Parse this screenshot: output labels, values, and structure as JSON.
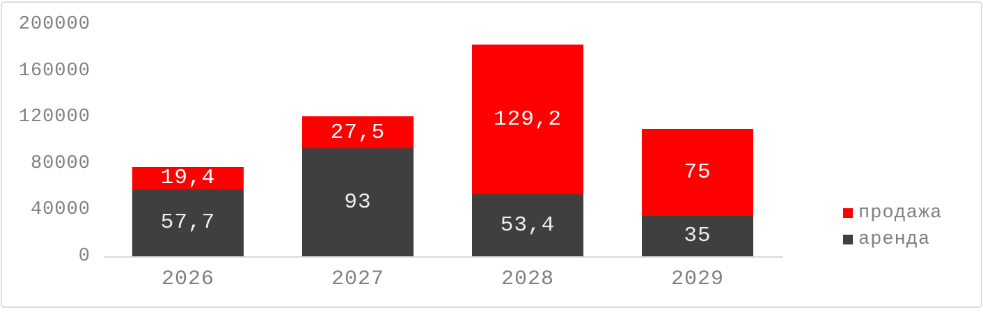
{
  "chart_data": {
    "type": "bar",
    "stacked": true,
    "title": "",
    "xlabel": "",
    "ylabel": "",
    "categories": [
      "2026",
      "2027",
      "2028",
      "2029"
    ],
    "series": [
      {
        "name": "продажа",
        "color": "#FF0000",
        "label_color": "#FFFFFF",
        "values": [
          19400,
          27500,
          129200,
          75000
        ],
        "data_labels": [
          "19,4",
          "27,5",
          "129,2",
          "75"
        ]
      },
      {
        "name": "аренда",
        "color": "#3F3F3F",
        "label_color": "#EDEDED",
        "values": [
          57700,
          93000,
          53400,
          35000
        ],
        "data_labels": [
          "57,7",
          "93",
          "53,4",
          "35"
        ]
      }
    ],
    "stack_bottom_to_top": [
      "аренда",
      "продажа"
    ],
    "y_ticks": [
      0,
      40000,
      80000,
      120000,
      160000,
      200000
    ],
    "y_tick_labels": [
      "0",
      "40000",
      "80000",
      "120000",
      "160000",
      "200000"
    ],
    "ylim": [
      0,
      200000
    ],
    "gridlines": false,
    "legend_position": "right",
    "axis_line_color": "#D9D9D9",
    "tick_label_color": "#808080"
  }
}
